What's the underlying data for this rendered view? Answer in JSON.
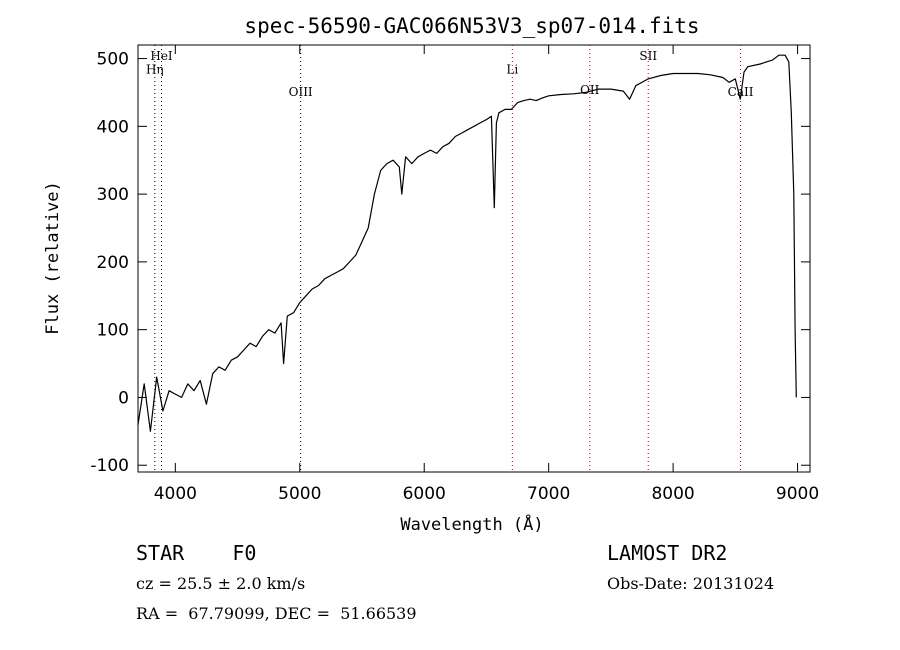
{
  "chart_data": {
    "type": "line",
    "title": "spec-56590-GAC066N53V3_sp07-014.fits",
    "xlabel": "Wavelength (Å)",
    "ylabel": "Flux (relative)",
    "xlim": [
      3700,
      9100
    ],
    "ylim": [
      -110,
      520
    ],
    "xticks": [
      4000,
      5000,
      6000,
      7000,
      8000,
      9000
    ],
    "yticks": [
      -100,
      0,
      100,
      200,
      300,
      400,
      500
    ],
    "grid": false,
    "series": [
      {
        "color": "#000000",
        "points": [
          [
            3700,
            -40
          ],
          [
            3750,
            20
          ],
          [
            3800,
            -50
          ],
          [
            3850,
            30
          ],
          [
            3900,
            -20
          ],
          [
            3950,
            10
          ],
          [
            4000,
            5
          ],
          [
            4050,
            0
          ],
          [
            4100,
            20
          ],
          [
            4150,
            10
          ],
          [
            4200,
            25
          ],
          [
            4250,
            -10
          ],
          [
            4300,
            35
          ],
          [
            4350,
            45
          ],
          [
            4400,
            40
          ],
          [
            4450,
            55
          ],
          [
            4500,
            60
          ],
          [
            4550,
            70
          ],
          [
            4600,
            80
          ],
          [
            4650,
            75
          ],
          [
            4700,
            90
          ],
          [
            4750,
            100
          ],
          [
            4800,
            95
          ],
          [
            4850,
            110
          ],
          [
            4870,
            50
          ],
          [
            4900,
            120
          ],
          [
            4950,
            125
          ],
          [
            5000,
            140
          ],
          [
            5050,
            150
          ],
          [
            5100,
            160
          ],
          [
            5150,
            165
          ],
          [
            5200,
            175
          ],
          [
            5250,
            180
          ],
          [
            5300,
            185
          ],
          [
            5350,
            190
          ],
          [
            5400,
            200
          ],
          [
            5450,
            210
          ],
          [
            5500,
            230
          ],
          [
            5550,
            250
          ],
          [
            5600,
            300
          ],
          [
            5650,
            335
          ],
          [
            5700,
            345
          ],
          [
            5750,
            350
          ],
          [
            5800,
            340
          ],
          [
            5820,
            300
          ],
          [
            5850,
            355
          ],
          [
            5900,
            345
          ],
          [
            5950,
            355
          ],
          [
            6000,
            360
          ],
          [
            6050,
            365
          ],
          [
            6100,
            360
          ],
          [
            6150,
            370
          ],
          [
            6200,
            375
          ],
          [
            6250,
            385
          ],
          [
            6300,
            390
          ],
          [
            6350,
            395
          ],
          [
            6400,
            400
          ],
          [
            6450,
            405
          ],
          [
            6500,
            410
          ],
          [
            6540,
            415
          ],
          [
            6563,
            280
          ],
          [
            6580,
            405
          ],
          [
            6600,
            420
          ],
          [
            6650,
            425
          ],
          [
            6700,
            425
          ],
          [
            6750,
            435
          ],
          [
            6800,
            438
          ],
          [
            6850,
            440
          ],
          [
            6900,
            438
          ],
          [
            6950,
            442
          ],
          [
            7000,
            445
          ],
          [
            7100,
            447
          ],
          [
            7200,
            448
          ],
          [
            7300,
            450
          ],
          [
            7400,
            455
          ],
          [
            7500,
            455
          ],
          [
            7600,
            452
          ],
          [
            7650,
            440
          ],
          [
            7700,
            460
          ],
          [
            7800,
            470
          ],
          [
            7900,
            475
          ],
          [
            8000,
            478
          ],
          [
            8100,
            478
          ],
          [
            8200,
            478
          ],
          [
            8300,
            476
          ],
          [
            8400,
            472
          ],
          [
            8450,
            465
          ],
          [
            8500,
            470
          ],
          [
            8540,
            440
          ],
          [
            8570,
            480
          ],
          [
            8600,
            488
          ],
          [
            8700,
            492
          ],
          [
            8800,
            498
          ],
          [
            8850,
            505
          ],
          [
            8900,
            505
          ],
          [
            8930,
            495
          ],
          [
            8950,
            420
          ],
          [
            8970,
            300
          ],
          [
            8980,
            100
          ],
          [
            8990,
            0
          ]
        ]
      }
    ],
    "lines": [
      {
        "label": "HeI",
        "x": 3889,
        "color": "#000000",
        "label_y": 498
      },
      {
        "label": "Hη",
        "x": 3835,
        "color": "#000000",
        "label_y": 478
      },
      {
        "label": "OIII",
        "x": 5007,
        "color": "#000000",
        "label_y": 445
      },
      {
        "label": "Li",
        "x": 6708,
        "color": "#cc0000",
        "label_y": 478
      },
      {
        "label": "OII",
        "x": 7330,
        "color": "#cc0000",
        "label_y": 448
      },
      {
        "label": "SII",
        "x": 7800,
        "color": "#cc0000",
        "label_y": 498
      },
      {
        "label": "CaII",
        "x": 8542,
        "color": "#cc0000",
        "label_y": 445
      }
    ]
  },
  "info": {
    "object": "STAR    F0",
    "survey": "LAMOST DR2",
    "cz": "cz = 25.5 ± 2.0 km/s",
    "obsdate": "Obs-Date: 20131024",
    "coords": "RA =  67.79099, DEC =  51.66539"
  }
}
